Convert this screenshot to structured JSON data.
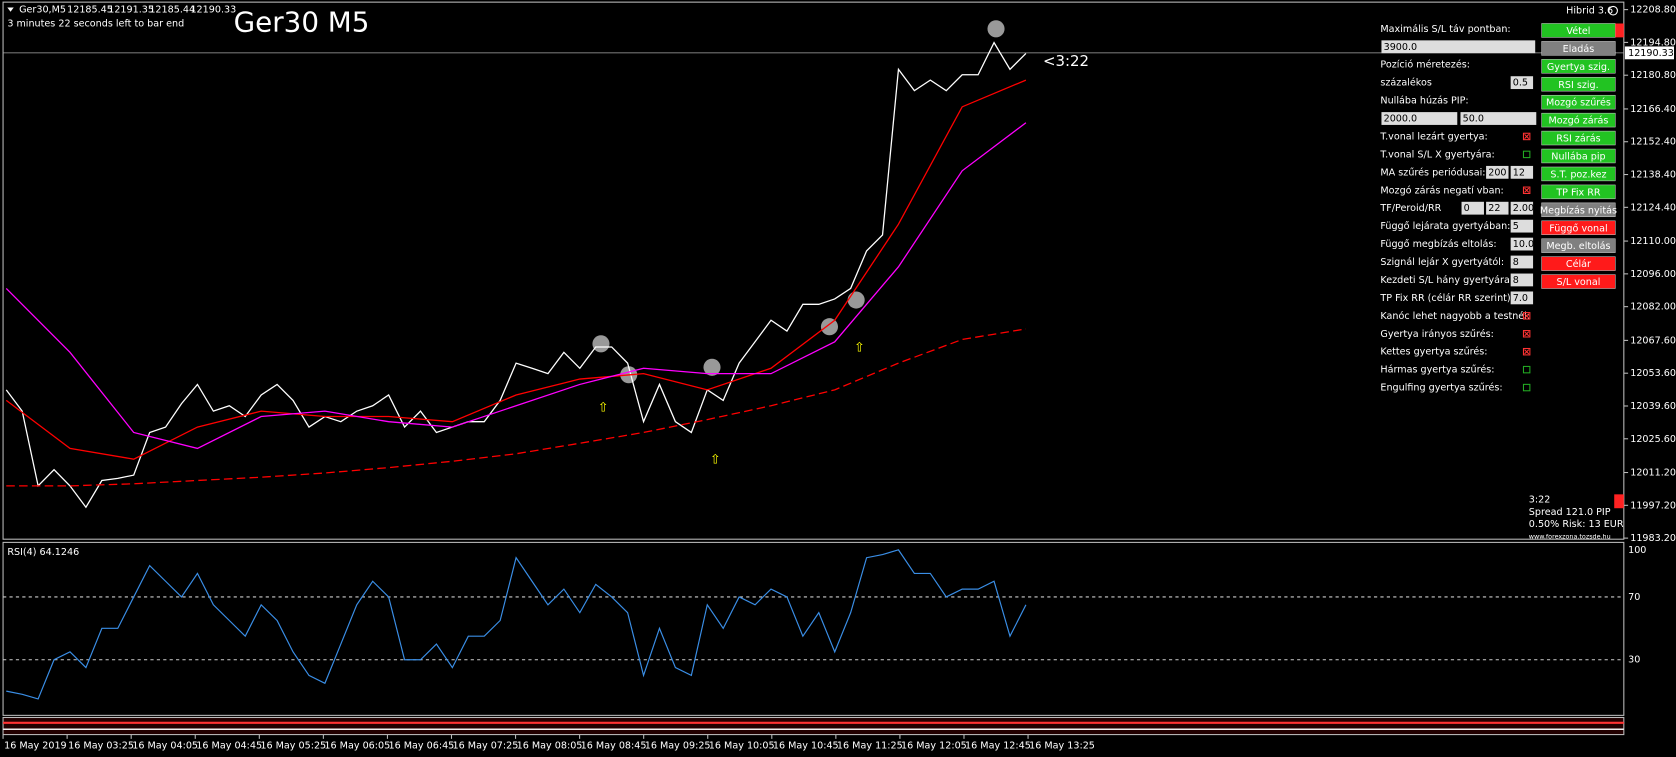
{
  "header": {
    "symbol": "Ger30,M5",
    "ohlc": [
      12185.45,
      12191.35,
      12185.44,
      12190.33
    ],
    "countdown": "3 minutes 22 seconds left to bar end",
    "big_title": "Ger30 M5",
    "timer": "<3:22",
    "version": "Hibrid 3.6"
  },
  "price_chart": {
    "current_price": 12190.33,
    "ylim": [
      11983.2,
      12208.8
    ],
    "yticks": [
      {
        "value": 12208.8,
        "label": "12208.80"
      },
      {
        "value": 12194.8,
        "label": "12194.80"
      },
      {
        "value": 12180.8,
        "label": "12180.80"
      },
      {
        "value": 12166.4,
        "label": "12166.40"
      },
      {
        "value": 12152.4,
        "label": "12152.40"
      },
      {
        "value": 12138.4,
        "label": "12138.40"
      },
      {
        "value": 12124.4,
        "label": "12124.40"
      },
      {
        "value": 12110,
        "label": "12110.00"
      },
      {
        "value": 12096,
        "label": "12096.00"
      },
      {
        "value": 12082,
        "label": "12082.00"
      },
      {
        "value": 12067.6,
        "label": "12067.60"
      },
      {
        "value": 12053.6,
        "label": "12053.60"
      },
      {
        "value": 12039.6,
        "label": "12039.60"
      },
      {
        "value": 12025.6,
        "label": "12025.60"
      },
      {
        "value": 12011.2,
        "label": "12011.20"
      },
      {
        "value": 11997.2,
        "label": "11997.20"
      },
      {
        "value": 11983.2,
        "label": "11983.20"
      }
    ],
    "series": [
      {
        "color": "#ffffff",
        "dash": false,
        "values": [
          12046.5,
          12037.4,
          12005.5,
          12012.4,
          12005.5,
          11996.4,
          12007.8,
          12008.7,
          12010.1,
          12028.3,
          12030.6,
          12040.6,
          12048.8,
          12037.4,
          12039.7,
          12035.1,
          12044.3,
          12048.8,
          12042.0,
          12030.6,
          12035.1,
          12032.9,
          12037.4,
          12039.7,
          12044.3,
          12030.6,
          12037.4,
          12028.3,
          12030.6,
          12032.9,
          12032.9,
          12042.0,
          12057.9,
          12055.7,
          12053.4,
          12062.5,
          12055.7,
          12064.8,
          12064.8,
          12057.9,
          12032.9,
          12048.8,
          12032.9,
          12028.3,
          12046.5,
          12042.0,
          12057.9,
          12067.0,
          12076.2,
          12071.6,
          12083.0,
          12083.0,
          12085.3,
          12089.8,
          12105.8,
          12112.6,
          12183.3,
          12174.2,
          12178.7,
          12174.2,
          12181.0,
          12181.0,
          12194.7,
          12183.3,
          12190.1
        ]
      },
      {
        "color": "#ff0000",
        "dash": false,
        "values": [
          12042.0,
          12021.5,
          12016.9,
          12030.6,
          12037.4,
          12035.1,
          12035.1,
          12032.9,
          12044.3,
          12051.1,
          12053.4,
          12046.5,
          12055.7,
          12076.2,
          12117.2,
          12167.3,
          12178.7
        ]
      },
      {
        "color": "#ff00ff",
        "dash": false,
        "values": [
          12089.8,
          12062.5,
          12028.3,
          12021.5,
          12035.1,
          12037.4,
          12032.9,
          12030.6,
          12039.7,
          12048.8,
          12055.7,
          12053.4,
          12053.4,
          12067.0,
          12099.0,
          12140.0,
          12160.5
        ]
      },
      {
        "color": "#ff0000",
        "dash": true,
        "values": [
          12005.5,
          12005.5,
          12006.4,
          12007.8,
          12009.2,
          12011.0,
          12013.3,
          12016.0,
          12019.2,
          12023.7,
          12028.3,
          12033.8,
          12039.7,
          12046.5,
          12057.9,
          12068.0,
          12072.5
        ]
      }
    ]
  },
  "rsi": {
    "title": "RSI(4) 64.1246",
    "ylim": [
      0,
      100
    ],
    "yticks": [
      100,
      70,
      30
    ],
    "color": "#3a8ee6",
    "values": [
      10,
      8,
      5,
      30,
      35,
      25,
      50,
      50,
      70,
      90,
      80,
      70,
      85,
      65,
      55,
      45,
      65,
      55,
      35,
      20,
      15,
      40,
      65,
      80,
      70,
      30,
      30,
      40,
      25,
      45,
      45,
      55,
      95,
      80,
      65,
      75,
      60,
      78,
      70,
      60,
      20,
      50,
      25,
      20,
      65,
      50,
      70,
      65,
      75,
      70,
      45,
      60,
      35,
      60,
      95,
      97,
      100,
      85,
      85,
      70,
      75,
      75,
      80,
      45,
      65
    ]
  },
  "x_labels": [
    "16 May 2019",
    "16 May 03:25",
    "16 May 04:05",
    "16 May 04:45",
    "16 May 05:25",
    "16 May 06:05",
    "16 May 06:45",
    "16 May 07:25",
    "16 May 08:05",
    "16 May 08:45",
    "16 May 09:25",
    "16 May 10:05",
    "16 May 10:45",
    "16 May 11:25",
    "16 May 12:05",
    "16 May 12:45",
    "16 May 13:25"
  ],
  "panel": {
    "rows": [
      {
        "label": "Maximális S/L táv pontban:"
      },
      {
        "inputs": [
          "3900.0"
        ],
        "wide": true
      },
      {
        "label": "Pozíció méretezés:"
      },
      {
        "label": "százalékos",
        "inputs": [
          "0.5"
        ]
      },
      {
        "label": "Nullába húzás PIP:"
      },
      {
        "inputs": [
          "2000.0",
          "50.0"
        ],
        "wide": true
      },
      {
        "label": "T.vonal lezárt gyertya:",
        "check": true
      },
      {
        "label": "T.vonal S/L X gyertyára:",
        "check": false
      },
      {
        "label": "MA szűrés periódusai:",
        "inputs": [
          "200",
          "12"
        ]
      },
      {
        "label": "Mozgó zárás negatí vban:",
        "check": true
      },
      {
        "label": "TF/Peroid/RR",
        "inputs": [
          "0",
          "22",
          "2.00"
        ]
      },
      {
        "label": "Függő lejárata gyertyában:",
        "inputs": [
          "5"
        ]
      },
      {
        "label": "Függő megbízás eltolás:",
        "inputs": [
          "10.0"
        ]
      },
      {
        "label": "Szignál lejár X gyertyától:",
        "inputs": [
          "8"
        ]
      },
      {
        "label": "Kezdeti S/L hány gyertyára:",
        "inputs": [
          "8"
        ]
      },
      {
        "label": "TP Fix RR (célár RR szerint):",
        "inputs": [
          "7.0"
        ]
      },
      {
        "label": "Kanóc lehet nagyobb a testnél:",
        "check": true
      },
      {
        "label": "Gyertya irányos szűrés:",
        "check": true
      },
      {
        "label": "Kettes gyertya szűrés:",
        "check": true
      },
      {
        "label": "Hármas gyertya szűrés:",
        "check": false
      },
      {
        "label": "Engulfing gyertya szűrés:",
        "check": false
      }
    ],
    "buttons": [
      {
        "label": "Vétel",
        "color": "#22c322"
      },
      {
        "label": "Eladás",
        "color": "#808080"
      },
      {
        "label": "Gyertya szig.",
        "color": "#22c322"
      },
      {
        "label": "RSI szig.",
        "color": "#22c322"
      },
      {
        "label": "Mozgó szűrés",
        "color": "#22c322"
      },
      {
        "label": "Mozgó zárás",
        "color": "#22c322"
      },
      {
        "label": "RSI zárás",
        "color": "#22c322"
      },
      {
        "label": "Nullába pip",
        "color": "#22c322"
      },
      {
        "label": "S.T. poz.kez",
        "color": "#22c322"
      },
      {
        "label": "TP Fix RR",
        "color": "#22c322"
      },
      {
        "label": "Megbízás nyitás",
        "color": "#808080"
      },
      {
        "label": "Függő vonal",
        "color": "#ff1a1a"
      },
      {
        "label": "Megb. eltolás",
        "color": "#808080"
      },
      {
        "label": "Célár",
        "color": "#ff1a1a"
      },
      {
        "label": "S/L vonal",
        "color": "#ff1a1a"
      }
    ]
  },
  "info": [
    "3:22",
    "Spread 121.0 PIP",
    "0.50% Risk: 13 EUR",
    "www.forexzona.tozsde.hu"
  ]
}
